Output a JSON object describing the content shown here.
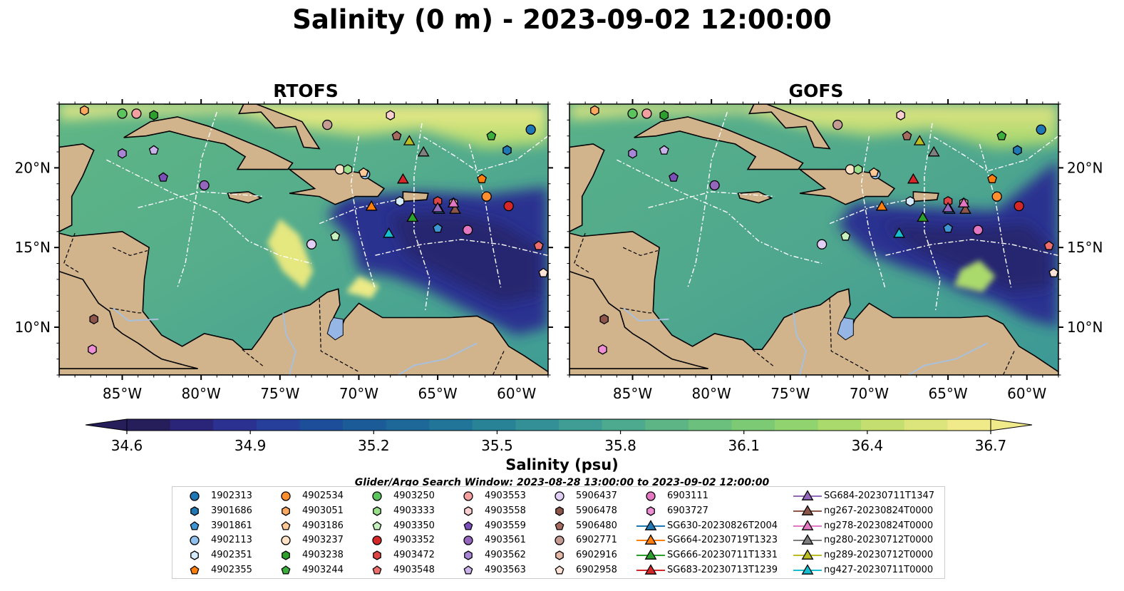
{
  "title": "Salinity (0 m) - 2023-09-02 12:00:00",
  "panels": [
    {
      "name": "RTOFS",
      "variant": "rtofs"
    },
    {
      "name": "GOFS",
      "variant": "gofs"
    }
  ],
  "axes": {
    "lon_ticks": [
      "85°W",
      "80°W",
      "75°W",
      "70°W",
      "65°W",
      "60°W"
    ],
    "lat_ticks": [
      "20°N",
      "15°N",
      "10°N"
    ],
    "lon_range": [
      -89,
      -58
    ],
    "lat_range": [
      7,
      24
    ]
  },
  "colorbar": {
    "label": "Salinity (psu)",
    "min": 34.6,
    "max": 36.7,
    "ticks": [
      "34.6",
      "34.9",
      "35.2",
      "35.5",
      "35.8",
      "36.1",
      "36.4",
      "36.7"
    ],
    "colors": [
      "#261e5b",
      "#2a2579",
      "#2b3190",
      "#253f9a",
      "#1d4e9a",
      "#1b5b98",
      "#1d6898",
      "#217598",
      "#298397",
      "#349097",
      "#409d95",
      "#4eaa8e",
      "#5db585",
      "#6cc07d",
      "#7ccb74",
      "#91d36f",
      "#aad96c",
      "#c4df70",
      "#dbe57b",
      "#f1ea8a"
    ]
  },
  "search_window": "Glider/Argo Search Window: 2023-08-28 13:00:00 to 2023-09-02 12:00:00",
  "colors": {
    "land": "#d2b48c",
    "ocean_deep": "#261e5b",
    "lake": "#96b7e6"
  },
  "legend": [
    {
      "label": "1902313",
      "marker": "circle",
      "color": "#1f77b4"
    },
    {
      "label": "3901686",
      "marker": "hexagon",
      "color": "#1f77b4"
    },
    {
      "label": "3901861",
      "marker": "pentagon",
      "color": "#3d95d4"
    },
    {
      "label": "4902113",
      "marker": "circle",
      "color": "#8fc1ec"
    },
    {
      "label": "4902351",
      "marker": "hexagon",
      "color": "#d6ebfb"
    },
    {
      "label": "4902355",
      "marker": "pentagon",
      "color": "#ff7f0e"
    },
    {
      "label": "4902534",
      "marker": "circle",
      "color": "#ff8f2e"
    },
    {
      "label": "4903051",
      "marker": "hexagon",
      "color": "#ffa860"
    },
    {
      "label": "4903186",
      "marker": "pentagon",
      "color": "#ffc895"
    },
    {
      "label": "4903237",
      "marker": "circle",
      "color": "#ffe2c6"
    },
    {
      "label": "4903238",
      "marker": "hexagon",
      "color": "#2ca02c"
    },
    {
      "label": "4903244",
      "marker": "pentagon",
      "color": "#3cae3c"
    },
    {
      "label": "4903250",
      "marker": "circle",
      "color": "#5cc45c"
    },
    {
      "label": "4903333",
      "marker": "hexagon",
      "color": "#98df8a"
    },
    {
      "label": "4903350",
      "marker": "pentagon",
      "color": "#c6f0bd"
    },
    {
      "label": "4903352",
      "marker": "circle",
      "color": "#d62728"
    },
    {
      "label": "4903472",
      "marker": "hexagon",
      "color": "#e04545"
    },
    {
      "label": "4903548",
      "marker": "pentagon",
      "color": "#ee6e6e"
    },
    {
      "label": "4903553",
      "marker": "circle",
      "color": "#f4a0a0"
    },
    {
      "label": "4903558",
      "marker": "hexagon",
      "color": "#fcd0d0"
    },
    {
      "label": "4903559",
      "marker": "pentagon",
      "color": "#7b4fb8"
    },
    {
      "label": "4903561",
      "marker": "circle",
      "color": "#9467bd"
    },
    {
      "label": "4903562",
      "marker": "hexagon",
      "color": "#a985d6"
    },
    {
      "label": "4903563",
      "marker": "pentagon",
      "color": "#c9b1e9"
    },
    {
      "label": "5906437",
      "marker": "circle",
      "color": "#e2cff5"
    },
    {
      "label": "5906478",
      "marker": "hexagon",
      "color": "#8c564b"
    },
    {
      "label": "5906480",
      "marker": "pentagon",
      "color": "#a46b5e"
    },
    {
      "label": "6902771",
      "marker": "circle",
      "color": "#c49c94"
    },
    {
      "label": "6902916",
      "marker": "hexagon",
      "color": "#e6b8a6"
    },
    {
      "label": "6902958",
      "marker": "pentagon",
      "color": "#fde3d7"
    },
    {
      "label": "6903111",
      "marker": "circle",
      "color": "#e377c2"
    },
    {
      "label": "6903727",
      "marker": "hexagon",
      "color": "#ee8fd5"
    },
    {
      "label": "SG630-20230826T2004",
      "marker": "triangle-line",
      "color": "#1f77b4"
    },
    {
      "label": "SG664-20230719T1323",
      "marker": "triangle-line",
      "color": "#ff7f0e"
    },
    {
      "label": "SG666-20230711T1331",
      "marker": "triangle-line",
      "color": "#2ca02c"
    },
    {
      "label": "SG683-20230713T1239",
      "marker": "triangle-line",
      "color": "#d62728"
    },
    {
      "label": "SG684-20230711T1347",
      "marker": "triangle-line",
      "color": "#9467bd"
    },
    {
      "label": "ng267-20230824T0000",
      "marker": "triangle-line",
      "color": "#8c564b"
    },
    {
      "label": "ng278-20230824T0000",
      "marker": "triangle-line",
      "color": "#e377c2"
    },
    {
      "label": "ng280-20230712T0000",
      "marker": "triangle-line",
      "color": "#7f7f7f"
    },
    {
      "label": "ng289-20230712T0000",
      "marker": "triangle-line",
      "color": "#bcbd22"
    },
    {
      "label": "ng427-20230711T0000",
      "marker": "triangle-line",
      "color": "#17becf"
    }
  ],
  "observations": [
    {
      "id": "1902313",
      "lon": -59.1,
      "lat": 22.4
    },
    {
      "id": "3901686",
      "lon": -60.6,
      "lat": 21.1
    },
    {
      "id": "3901861",
      "lon": -65.0,
      "lat": 16.2
    },
    {
      "id": "4902113",
      "lon": -69.6,
      "lat": 19.6
    },
    {
      "id": "4902351",
      "lon": -67.4,
      "lat": 17.9
    },
    {
      "id": "4902355",
      "lon": -62.2,
      "lat": 19.3
    },
    {
      "id": "4902534",
      "lon": -61.9,
      "lat": 18.2
    },
    {
      "id": "4903051",
      "lon": -87.4,
      "lat": 23.6
    },
    {
      "id": "4903186",
      "lon": -69.7,
      "lat": 19.7
    },
    {
      "id": "4903237",
      "lon": -71.2,
      "lat": 19.9
    },
    {
      "id": "4903238",
      "lon": -83.0,
      "lat": 23.3
    },
    {
      "id": "4903244",
      "lon": -61.6,
      "lat": 22.0
    },
    {
      "id": "4903250",
      "lon": -85.0,
      "lat": 23.4
    },
    {
      "id": "4903333",
      "lon": -70.7,
      "lat": 19.9
    },
    {
      "id": "4903350",
      "lon": -71.5,
      "lat": 15.7
    },
    {
      "id": "4903352",
      "lon": -60.5,
      "lat": 17.6
    },
    {
      "id": "4903472",
      "lon": -65.0,
      "lat": 17.9
    },
    {
      "id": "4903548",
      "lon": -58.6,
      "lat": 15.1
    },
    {
      "id": "4903553",
      "lon": -84.1,
      "lat": 23.4
    },
    {
      "id": "4903558",
      "lon": -68.0,
      "lat": 23.3
    },
    {
      "id": "4903559",
      "lon": -82.4,
      "lat": 19.4
    },
    {
      "id": "4903561",
      "lon": -79.8,
      "lat": 18.9
    },
    {
      "id": "4903562",
      "lon": -85.0,
      "lat": 20.9
    },
    {
      "id": "4903563",
      "lon": -83.0,
      "lat": 21.1
    },
    {
      "id": "5906437",
      "lon": -73.0,
      "lat": 15.2
    },
    {
      "id": "5906478",
      "lon": -86.8,
      "lat": 10.5
    },
    {
      "id": "5906480",
      "lon": -67.6,
      "lat": 22.0
    },
    {
      "id": "6902771",
      "lon": -72.0,
      "lat": 22.7
    },
    {
      "id": "6902916",
      "lon": -64.0,
      "lat": 17.8
    },
    {
      "id": "6902958",
      "lon": -58.3,
      "lat": 13.4
    },
    {
      "id": "6903111",
      "lon": -63.1,
      "lat": 16.1
    },
    {
      "id": "6903727",
      "lon": -86.9,
      "lat": 8.6
    },
    {
      "id": "SG630-20230826T2004",
      "lon": -64.9,
      "lat": 17.4
    },
    {
      "id": "SG664-20230719T1323",
      "lon": -69.2,
      "lat": 17.6
    },
    {
      "id": "SG666-20230711T1331",
      "lon": -66.6,
      "lat": 16.9
    },
    {
      "id": "SG683-20230713T1239",
      "lon": -67.2,
      "lat": 19.3
    },
    {
      "id": "SG684-20230711T1347",
      "lon": -65.0,
      "lat": 17.5
    },
    {
      "id": "ng267-20230824T0000",
      "lon": -63.9,
      "lat": 17.4
    },
    {
      "id": "ng278-20230824T0000",
      "lon": -64.0,
      "lat": 17.8
    },
    {
      "id": "ng280-20230712T0000",
      "lon": -65.9,
      "lat": 21.0
    },
    {
      "id": "ng289-20230712T0000",
      "lon": -66.8,
      "lat": 21.7
    },
    {
      "id": "ng427-20230711T0000",
      "lon": -68.1,
      "lat": 15.9
    }
  ]
}
